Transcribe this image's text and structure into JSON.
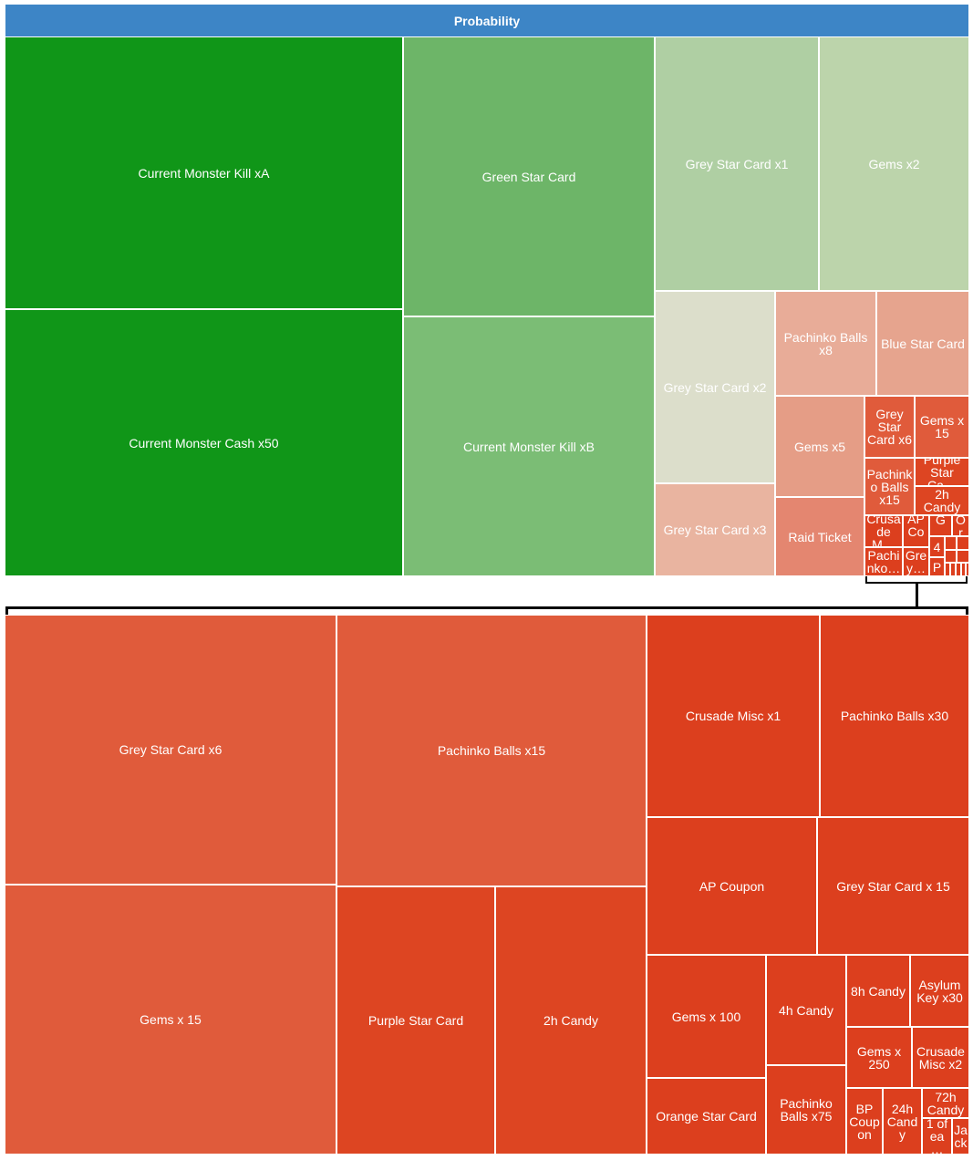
{
  "chart_data": {
    "type": "treemap",
    "title": "Probability",
    "top_level": [
      {
        "label": "Current Monster Kill xA",
        "color": "#109618"
      },
      {
        "label": "Current Monster Cash x50",
        "color": "#109618"
      },
      {
        "label": "Green Star Card",
        "color": "#6db568"
      },
      {
        "label": "Current Monster Kill xB",
        "color": "#7bbd75"
      },
      {
        "label": "Grey Star Card x1",
        "color": "#afcfa3"
      },
      {
        "label": "Gems x2",
        "color": "#bcd4ab"
      },
      {
        "label": "Grey Star Card x2",
        "color": "#dcdecb"
      },
      {
        "label": "Grey Star Card x3",
        "color": "#e9b4a0"
      },
      {
        "label": "Pachinko Balls x8",
        "color": "#e8ac98"
      },
      {
        "label": "Blue Star Card",
        "color": "#e6a48e"
      },
      {
        "label": "Gems x5",
        "color": "#e59d86"
      },
      {
        "label": "Raid Ticket",
        "color": "#e48670"
      },
      {
        "label": "Grey Star Card x6",
        "color": "#e05b3b"
      },
      {
        "label": "Gems x 15",
        "color": "#e05b3b"
      },
      {
        "label": "Pachinko Balls x15",
        "color": "#e05b3b"
      },
      {
        "label": "Purple Star Ca…",
        "color": "#dd4522"
      },
      {
        "label": "2h Candy",
        "color": "#dd4522"
      },
      {
        "label": "Crusade M…",
        "color": "#dc3f1e"
      },
      {
        "label": "AP Co…",
        "color": "#dc3f1e"
      },
      {
        "label": "Pachinko…",
        "color": "#dc3f1e"
      },
      {
        "label": "Grey…",
        "color": "#dc3f1e"
      },
      {
        "label": "G…",
        "color": "#dc3f1e"
      },
      {
        "label": "Or",
        "color": "#dc3f1e"
      },
      {
        "label": "4",
        "color": "#dc3f1e"
      },
      {
        "label": "P",
        "color": "#dc3f1e"
      },
      {
        "label": "",
        "color": "#dc3f1e"
      },
      {
        "label": "",
        "color": "#dc3f1e"
      },
      {
        "label": "",
        "color": "#dc3f1e"
      },
      {
        "label": "",
        "color": "#dc3f1e"
      },
      {
        "label": "",
        "color": "#dc3f1e"
      },
      {
        "label": "",
        "color": "#dc3f1e"
      },
      {
        "label": "",
        "color": "#dc3f1e"
      },
      {
        "label": "",
        "color": "#dc3f1e"
      },
      {
        "label": "",
        "color": "#dc3f1e"
      }
    ],
    "detail": [
      {
        "label": "Grey Star Card x6",
        "color": "#e05b3b"
      },
      {
        "label": "Gems x 15",
        "color": "#e05b3b"
      },
      {
        "label": "Pachinko Balls x15",
        "color": "#e05b3b"
      },
      {
        "label": "Purple Star Card",
        "color": "#dd4522"
      },
      {
        "label": "2h Candy",
        "color": "#dd4522"
      },
      {
        "label": "Crusade Misc x1",
        "color": "#dc3f1e"
      },
      {
        "label": "Pachinko Balls x30",
        "color": "#dc3f1e"
      },
      {
        "label": "AP Coupon",
        "color": "#dc3f1e"
      },
      {
        "label": "Grey Star Card x 15",
        "color": "#dc3f1e"
      },
      {
        "label": "Gems x 100",
        "color": "#dc3f1e"
      },
      {
        "label": "Orange Star Card",
        "color": "#dc3f1e"
      },
      {
        "label": "4h Candy",
        "color": "#dc3f1e"
      },
      {
        "label": "Pachinko Balls x75",
        "color": "#dc3f1e"
      },
      {
        "label": "8h Candy",
        "color": "#dc3f1e"
      },
      {
        "label": "Asylum Key x30",
        "color": "#dc3f1e"
      },
      {
        "label": "Gems x 250",
        "color": "#dc3f1e"
      },
      {
        "label": "Crusade Misc x2",
        "color": "#dc3f1e"
      },
      {
        "label": "BP Coupon",
        "color": "#dc3f1e"
      },
      {
        "label": "24h Candy",
        "color": "#dc3f1e"
      },
      {
        "label": "72h Candy",
        "color": "#dc3f1e"
      },
      {
        "label": "1 of ea…",
        "color": "#dc3f1e"
      },
      {
        "label": "Jack",
        "color": "#dc3f1e"
      }
    ]
  }
}
